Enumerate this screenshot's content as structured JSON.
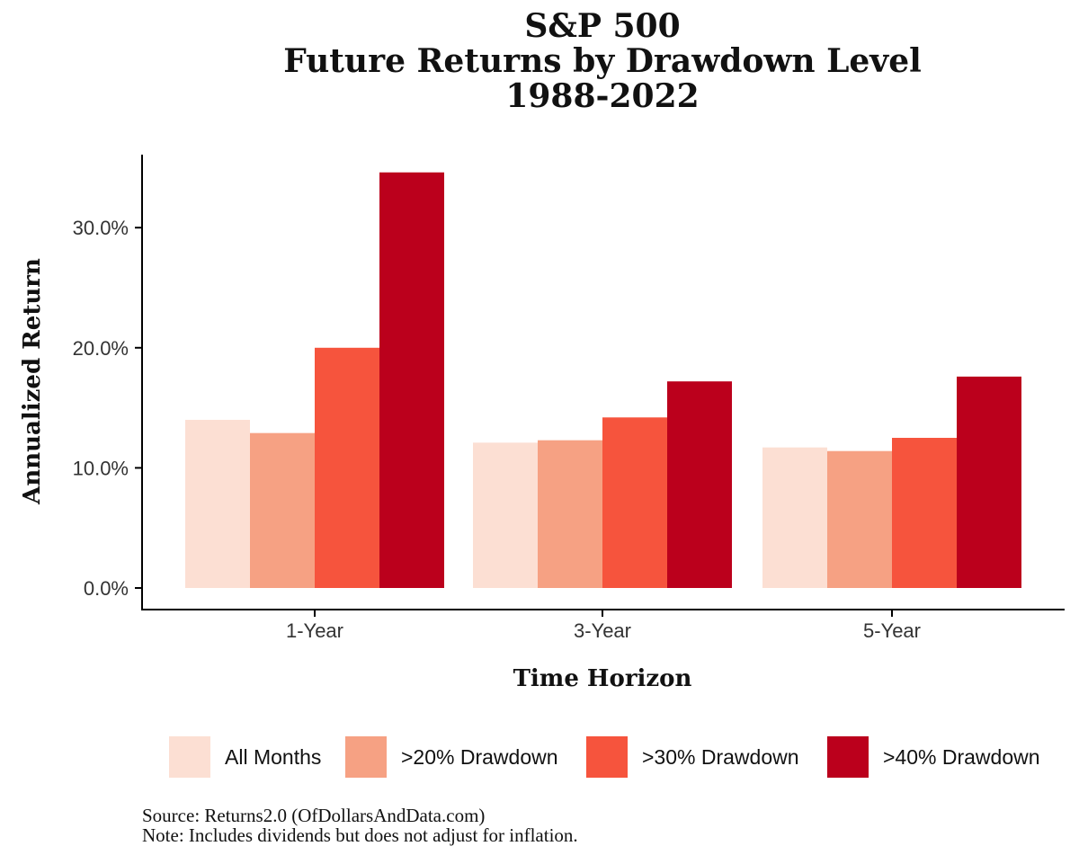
{
  "chart_data": {
    "type": "bar",
    "title": [
      "S&P 500",
      "Future Returns by Drawdown Level",
      "1988-2022"
    ],
    "xlabel": "Time Horizon",
    "ylabel": "Annualized Return",
    "categories": [
      "1-Year",
      "3-Year",
      "5-Year"
    ],
    "ylim": [
      0,
      35
    ],
    "yticks": [
      0,
      10,
      20,
      30
    ],
    "ytick_labels": [
      "0.0%",
      "10.0%",
      "20.0%",
      "30.0%"
    ],
    "series": [
      {
        "name": "All Months",
        "color": "#fcdfd3",
        "values": [
          14.0,
          12.1,
          11.7
        ]
      },
      {
        "name": ">20% Drawdown",
        "color": "#f6a183",
        "values": [
          12.9,
          12.3,
          11.4
        ]
      },
      {
        "name": ">30% Drawdown",
        "color": "#f6543d",
        "values": [
          20.0,
          14.2,
          12.5
        ]
      },
      {
        "name": ">40% Drawdown",
        "color": "#bb001c",
        "values": [
          34.6,
          17.2,
          17.6
        ]
      }
    ],
    "legend_position": "bottom",
    "grid": false
  },
  "footer": {
    "source": "Source: Returns2.0 (OfDollarsAndData.com)",
    "note": "Note: Includes dividends but does not adjust for inflation."
  }
}
